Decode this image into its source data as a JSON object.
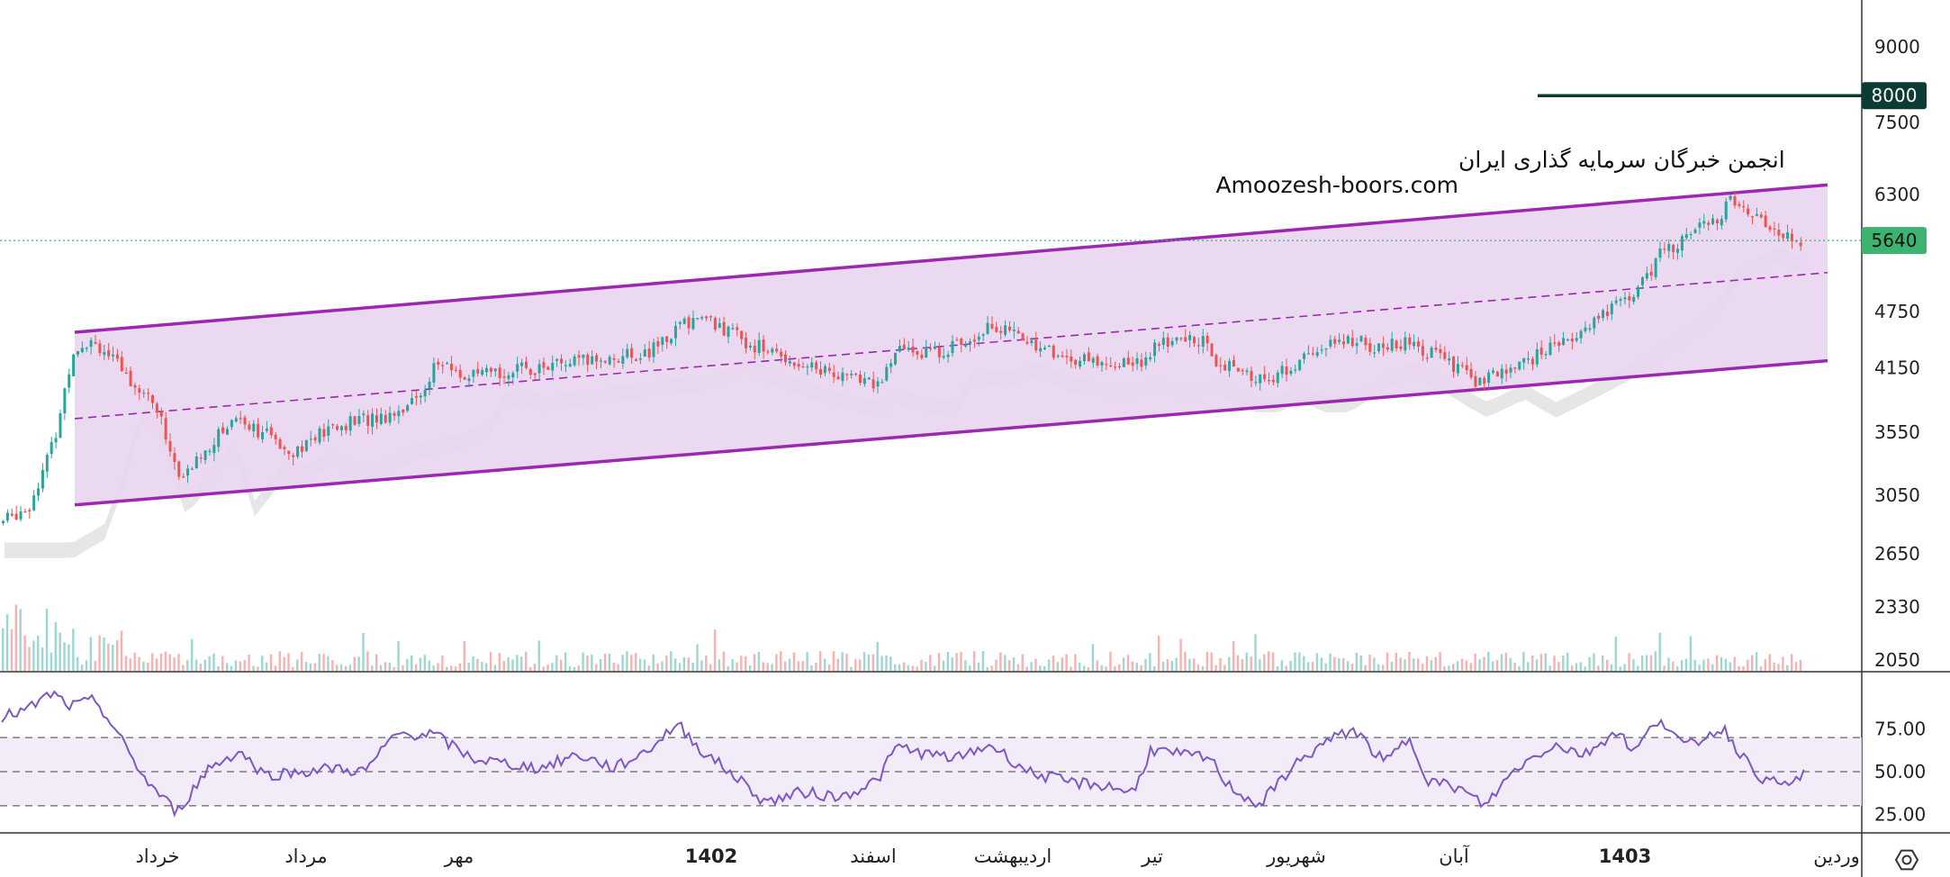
{
  "chart_data": {
    "type": "candlestick",
    "watermark": {
      "line1": "انجمن خبرگان سرمایه گذاری ایران",
      "line2": "Amoozesh-boors.com"
    },
    "price_axis": {
      "ticks": [
        "9000",
        "7500",
        "6300",
        "4750",
        "4150",
        "3550",
        "3050",
        "2650",
        "2330",
        "2050"
      ],
      "tick_values": [
        9000,
        7500,
        6300,
        4750,
        4150,
        3550,
        3050,
        2650,
        2330,
        2050
      ],
      "scale": "log",
      "range": [
        2050,
        9000
      ]
    },
    "last_price": {
      "label": "5640",
      "value": 5640,
      "color": "#3cb371"
    },
    "target_line": {
      "label": "8000",
      "value": 8000,
      "color": "#0b3b33"
    },
    "channel": {
      "color": "#9c27b0",
      "fill": "#e9d5f0",
      "upper": {
        "from": 4520,
        "to": 6450
      },
      "lower": {
        "from": 2980,
        "to": 4220
      },
      "mid": {
        "from": 3670,
        "to": 5220
      }
    },
    "colors": {
      "up": "#26a69a",
      "down": "#ef5350",
      "rsi": "#7e57c2"
    },
    "time_axis": {
      "labels": [
        {
          "text": "خرداد",
          "bold": false
        },
        {
          "text": "مرداد",
          "bold": false
        },
        {
          "text": "مهر",
          "bold": false
        },
        {
          "text": "1402",
          "bold": true
        },
        {
          "text": "اسفند",
          "bold": false
        },
        {
          "text": "اردیبهشت",
          "bold": false
        },
        {
          "text": "تیر",
          "bold": false
        },
        {
          "text": "شهریور",
          "bold": false
        },
        {
          "text": "آبان",
          "bold": false
        },
        {
          "text": "1403",
          "bold": true
        },
        {
          "text": "وردین",
          "bold": false
        }
      ]
    },
    "rsi": {
      "ticks": [
        "75.00",
        "50.00",
        "25.00"
      ],
      "tick_values": [
        75,
        50,
        25
      ],
      "range": [
        22,
        97
      ],
      "levels": [
        70,
        50,
        30
      ],
      "band": [
        30,
        70
      ]
    },
    "price_path": [
      [
        0,
        2850
      ],
      [
        25,
        2980
      ],
      [
        45,
        3500
      ],
      [
        60,
        4350
      ],
      [
        75,
        4450
      ],
      [
        100,
        4100
      ],
      [
        125,
        3800
      ],
      [
        145,
        3150
      ],
      [
        165,
        3400
      ],
      [
        190,
        3700
      ],
      [
        210,
        3550
      ],
      [
        235,
        3400
      ],
      [
        260,
        3550
      ],
      [
        285,
        3650
      ],
      [
        310,
        3700
      ],
      [
        335,
        3850
      ],
      [
        350,
        4200
      ],
      [
        375,
        4050
      ],
      [
        400,
        4100
      ],
      [
        430,
        4150
      ],
      [
        460,
        4200
      ],
      [
        490,
        4250
      ],
      [
        520,
        4300
      ],
      [
        545,
        4600
      ],
      [
        560,
        4700
      ],
      [
        600,
        4400
      ],
      [
        640,
        4200
      ],
      [
        680,
        4050
      ],
      [
        705,
        4000
      ],
      [
        720,
        4350
      ],
      [
        745,
        4300
      ],
      [
        770,
        4400
      ],
      [
        790,
        4600
      ],
      [
        820,
        4450
      ],
      [
        850,
        4250
      ],
      [
        880,
        4200
      ],
      [
        910,
        4200
      ],
      [
        930,
        4400
      ],
      [
        960,
        4450
      ],
      [
        975,
        4200
      ],
      [
        1000,
        4050
      ],
      [
        1020,
        4050
      ],
      [
        1050,
        4300
      ],
      [
        1080,
        4450
      ],
      [
        1100,
        4350
      ],
      [
        1125,
        4400
      ],
      [
        1145,
        4300
      ],
      [
        1170,
        4100
      ],
      [
        1185,
        4000
      ],
      [
        1210,
        4150
      ],
      [
        1240,
        4350
      ],
      [
        1265,
        4550
      ],
      [
        1285,
        4750
      ],
      [
        1310,
        5000
      ],
      [
        1330,
        5500
      ],
      [
        1355,
        5750
      ],
      [
        1370,
        5900
      ],
      [
        1385,
        6200
      ],
      [
        1400,
        6050
      ],
      [
        1420,
        5800
      ],
      [
        1440,
        5640
      ]
    ],
    "rsi_path": [
      [
        0,
        82
      ],
      [
        20,
        86
      ],
      [
        40,
        96
      ],
      [
        55,
        88
      ],
      [
        75,
        92
      ],
      [
        90,
        75
      ],
      [
        115,
        45
      ],
      [
        140,
        26
      ],
      [
        165,
        52
      ],
      [
        190,
        62
      ],
      [
        210,
        48
      ],
      [
        240,
        50
      ],
      [
        265,
        52
      ],
      [
        290,
        50
      ],
      [
        315,
        72
      ],
      [
        345,
        72
      ],
      [
        375,
        58
      ],
      [
        400,
        55
      ],
      [
        430,
        52
      ],
      [
        460,
        60
      ],
      [
        490,
        52
      ],
      [
        515,
        62
      ],
      [
        540,
        78
      ],
      [
        560,
        62
      ],
      [
        590,
        45
      ],
      [
        610,
        32
      ],
      [
        640,
        38
      ],
      [
        670,
        35
      ],
      [
        700,
        45
      ],
      [
        715,
        65
      ],
      [
        740,
        60
      ],
      [
        765,
        58
      ],
      [
        790,
        66
      ],
      [
        820,
        50
      ],
      [
        850,
        44
      ],
      [
        880,
        42
      ],
      [
        905,
        38
      ],
      [
        918,
        63
      ],
      [
        940,
        60
      ],
      [
        965,
        58
      ],
      [
        980,
        42
      ],
      [
        1005,
        30
      ],
      [
        1030,
        52
      ],
      [
        1055,
        66
      ],
      [
        1080,
        75
      ],
      [
        1105,
        55
      ],
      [
        1125,
        70
      ],
      [
        1140,
        45
      ],
      [
        1165,
        40
      ],
      [
        1185,
        30
      ],
      [
        1210,
        52
      ],
      [
        1240,
        66
      ],
      [
        1265,
        60
      ],
      [
        1290,
        74
      ],
      [
        1305,
        62
      ],
      [
        1325,
        82
      ],
      [
        1345,
        64
      ],
      [
        1375,
        76
      ],
      [
        1395,
        55
      ],
      [
        1410,
        44
      ],
      [
        1430,
        42
      ],
      [
        1440,
        50
      ]
    ]
  }
}
